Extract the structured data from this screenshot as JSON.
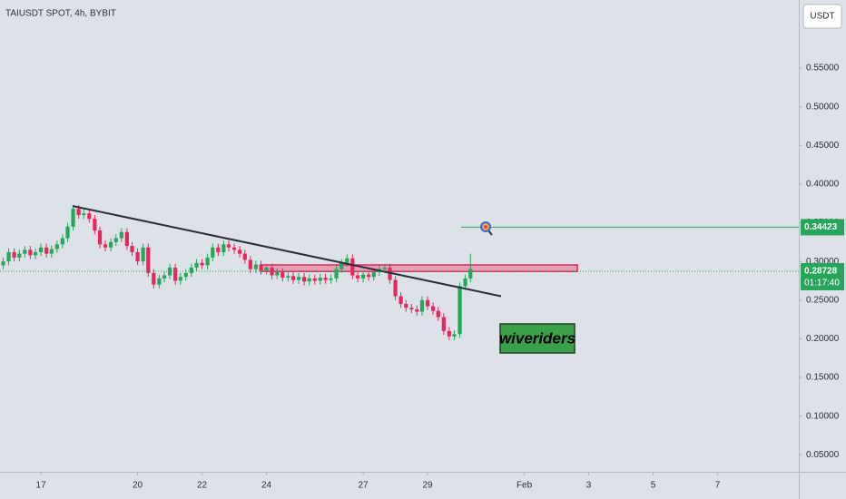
{
  "header": {
    "symbol": "TAIUSDT SPOT, 4h, BYBIT",
    "currency_button": "USDT"
  },
  "chart_data": {
    "type": "candlestick",
    "x": [
      15.83,
      16,
      16.17,
      16.33,
      16.5,
      16.67,
      16.83,
      17,
      17.17,
      17.33,
      17.5,
      17.67,
      17.83,
      18,
      18.17,
      18.33,
      18.5,
      18.67,
      18.83,
      19,
      19.17,
      19.33,
      19.5,
      19.67,
      19.83,
      20,
      20.17,
      20.33,
      20.5,
      20.67,
      20.83,
      21,
      21.17,
      21.33,
      21.5,
      21.67,
      21.83,
      22,
      22.17,
      22.33,
      22.5,
      22.67,
      22.83,
      23,
      23.17,
      23.33,
      23.5,
      23.67,
      23.83,
      24,
      24.17,
      24.33,
      24.5,
      24.67,
      24.83,
      25,
      25.17,
      25.33,
      25.5,
      25.67,
      25.83,
      26,
      26.17,
      26.33,
      26.5,
      26.67,
      26.83,
      27,
      27.17,
      27.33,
      27.5,
      27.67,
      27.83,
      28,
      28.17,
      28.33,
      28.5,
      28.67,
      28.83,
      29,
      29.17,
      29.33,
      29.5,
      29.67,
      29.83,
      30,
      30.17,
      30.33
    ],
    "open": [
      0.295,
      0.3,
      0.312,
      0.305,
      0.31,
      0.315,
      0.308,
      0.312,
      0.318,
      0.31,
      0.316,
      0.322,
      0.33,
      0.345,
      0.368,
      0.36,
      0.362,
      0.355,
      0.34,
      0.322,
      0.318,
      0.325,
      0.33,
      0.338,
      0.32,
      0.312,
      0.3,
      0.318,
      0.285,
      0.27,
      0.278,
      0.282,
      0.292,
      0.275,
      0.28,
      0.285,
      0.292,
      0.298,
      0.295,
      0.305,
      0.318,
      0.312,
      0.322,
      0.318,
      0.315,
      0.31,
      0.302,
      0.29,
      0.296,
      0.288,
      0.292,
      0.282,
      0.286,
      0.279,
      0.281,
      0.276,
      0.28,
      0.274,
      0.278,
      0.275,
      0.279,
      0.276,
      0.278,
      0.29,
      0.298,
      0.304,
      0.282,
      0.278,
      0.283,
      0.28,
      0.286,
      0.29,
      0.292,
      0.276,
      0.255,
      0.245,
      0.24,
      0.238,
      0.235,
      0.25,
      0.242,
      0.236,
      0.228,
      0.21,
      0.203,
      0.206,
      0.268,
      0.278
    ],
    "high": [
      0.305,
      0.317,
      0.317,
      0.315,
      0.32,
      0.32,
      0.317,
      0.323,
      0.323,
      0.321,
      0.327,
      0.335,
      0.35,
      0.373,
      0.373,
      0.367,
      0.367,
      0.36,
      0.345,
      0.327,
      0.33,
      0.335,
      0.343,
      0.343,
      0.325,
      0.317,
      0.323,
      0.323,
      0.29,
      0.283,
      0.287,
      0.297,
      0.297,
      0.285,
      0.29,
      0.297,
      0.303,
      0.303,
      0.31,
      0.323,
      0.323,
      0.327,
      0.327,
      0.323,
      0.32,
      0.315,
      0.307,
      0.301,
      0.301,
      0.297,
      0.297,
      0.291,
      0.291,
      0.286,
      0.286,
      0.285,
      0.285,
      0.283,
      0.283,
      0.284,
      0.284,
      0.283,
      0.295,
      0.303,
      0.309,
      0.309,
      0.287,
      0.288,
      0.288,
      0.291,
      0.295,
      0.297,
      0.297,
      0.281,
      0.26,
      0.25,
      0.245,
      0.243,
      0.255,
      0.255,
      0.247,
      0.241,
      0.233,
      0.215,
      0.211,
      0.273,
      0.283,
      0.31
    ],
    "low": [
      0.29,
      0.295,
      0.3,
      0.3,
      0.305,
      0.303,
      0.303,
      0.307,
      0.305,
      0.305,
      0.311,
      0.317,
      0.325,
      0.34,
      0.355,
      0.355,
      0.35,
      0.335,
      0.317,
      0.313,
      0.313,
      0.32,
      0.325,
      0.315,
      0.307,
      0.295,
      0.295,
      0.28,
      0.265,
      0.265,
      0.273,
      0.277,
      0.27,
      0.27,
      0.275,
      0.28,
      0.287,
      0.29,
      0.29,
      0.3,
      0.307,
      0.307,
      0.313,
      0.31,
      0.305,
      0.297,
      0.285,
      0.285,
      0.283,
      0.283,
      0.277,
      0.277,
      0.274,
      0.274,
      0.271,
      0.271,
      0.269,
      0.269,
      0.27,
      0.27,
      0.271,
      0.271,
      0.273,
      0.285,
      0.293,
      0.277,
      0.273,
      0.273,
      0.275,
      0.275,
      0.281,
      0.285,
      0.271,
      0.25,
      0.24,
      0.235,
      0.233,
      0.23,
      0.23,
      0.237,
      0.231,
      0.223,
      0.205,
      0.198,
      0.198,
      0.201,
      0.263,
      0.273
    ],
    "close": [
      0.3,
      0.312,
      0.305,
      0.31,
      0.315,
      0.308,
      0.312,
      0.318,
      0.31,
      0.316,
      0.322,
      0.33,
      0.345,
      0.368,
      0.36,
      0.362,
      0.355,
      0.34,
      0.322,
      0.318,
      0.325,
      0.33,
      0.338,
      0.32,
      0.312,
      0.3,
      0.318,
      0.285,
      0.27,
      0.278,
      0.282,
      0.292,
      0.275,
      0.28,
      0.285,
      0.292,
      0.298,
      0.295,
      0.305,
      0.318,
      0.312,
      0.322,
      0.318,
      0.315,
      0.31,
      0.302,
      0.29,
      0.296,
      0.288,
      0.292,
      0.282,
      0.286,
      0.279,
      0.281,
      0.276,
      0.28,
      0.274,
      0.278,
      0.275,
      0.279,
      0.276,
      0.278,
      0.29,
      0.298,
      0.304,
      0.282,
      0.278,
      0.283,
      0.28,
      0.286,
      0.29,
      0.292,
      0.276,
      0.255,
      0.245,
      0.24,
      0.238,
      0.235,
      0.25,
      0.242,
      0.236,
      0.228,
      0.21,
      0.203,
      0.206,
      0.268,
      0.278,
      0.29
    ],
    "up_color": "#26a65b",
    "down_color": "#e8265e",
    "xlim": [
      15.73,
      40.52
    ],
    "xticks": [
      17,
      20,
      22,
      24,
      27,
      29,
      {
        "value": 32,
        "label": "Feb"
      },
      {
        "value": 34,
        "label": "3"
      },
      {
        "value": 36,
        "label": "5"
      },
      {
        "value": 38,
        "label": "7"
      }
    ],
    "ylim": [
      0.028,
      0.638
    ],
    "yticks": [
      {
        "value": 0.05,
        "label": "0.05000"
      },
      {
        "value": 0.1,
        "label": "0.10000"
      },
      {
        "value": 0.15,
        "label": "0.15000"
      },
      {
        "value": 0.2,
        "label": "0.20000"
      },
      {
        "value": 0.25,
        "label": "0.25000"
      },
      {
        "value": 0.3,
        "label": "0.30000"
      },
      {
        "value": 0.35,
        "label": "0.35000"
      },
      {
        "value": 0.4,
        "label": "0.40000"
      },
      {
        "value": 0.45,
        "label": "0.45000"
      },
      {
        "value": 0.5,
        "label": "0.50000"
      },
      {
        "value": 0.55,
        "label": "0.55000"
      }
    ],
    "last_price": 0.28728,
    "countdown": "01:17:40",
    "target_price": 0.34423,
    "target_start_x": 30.04,
    "trendline": {
      "x": [
        17.99,
        31.28
      ],
      "y": [
        0.3716,
        0.255
      ]
    },
    "zone": {
      "x": [
        23.82,
        33.65
      ],
      "y": [
        0.287,
        0.2955
      ]
    },
    "watermark": "wiveriders"
  }
}
